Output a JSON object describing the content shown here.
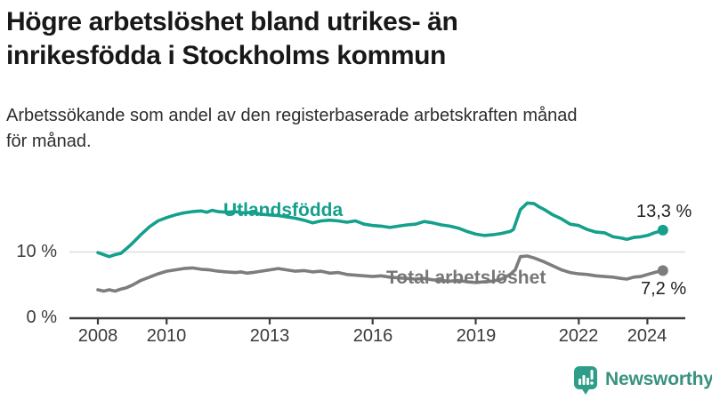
{
  "header": {
    "title_lines": [
      "Högre arbetslöshet bland utrikes- än",
      "inrikesfödda i Stockholms kommun"
    ],
    "subtitle_lines": [
      "Arbetssökande som andel av den registerbaserade arbetskraften månad",
      "för månad."
    ]
  },
  "branding": {
    "logo_text": "Newsworthy",
    "logo_icon": "speech-bubble-bar-chart-icon",
    "logo_icon_color": "#2f9e89",
    "logo_text_color": "#38927f"
  },
  "chart_data": {
    "type": "line",
    "title": "Högre arbetslöshet bland utrikes- än inrikesfödda i Stockholms kommun",
    "subtitle": "Arbetssökande som andel av den registerbaserade arbetskraften månad för månad.",
    "unit": "%",
    "grid": true,
    "legend_position": "inline-labels",
    "x_axis": {
      "ticks": [
        2008,
        2010,
        2013,
        2016,
        2019,
        2022,
        2024
      ],
      "range": [
        2008,
        2024.5
      ]
    },
    "y_axis": {
      "ticks": [
        {
          "value": 0,
          "label": "0 %"
        },
        {
          "value": 10,
          "label": "10 %"
        }
      ],
      "range": [
        0,
        20
      ],
      "gridlines": [
        10
      ]
    },
    "series": [
      {
        "name": "Utlandsfödda",
        "color": "#14a08c",
        "end_value": 13.3,
        "end_label": "13,3 %",
        "points": [
          [
            2008.0,
            9.9
          ],
          [
            2008.17,
            9.6
          ],
          [
            2008.33,
            9.3
          ],
          [
            2008.5,
            9.6
          ],
          [
            2008.67,
            9.8
          ],
          [
            2008.83,
            10.5
          ],
          [
            2009.0,
            11.3
          ],
          [
            2009.25,
            12.6
          ],
          [
            2009.5,
            13.8
          ],
          [
            2009.75,
            14.7
          ],
          [
            2010.0,
            15.2
          ],
          [
            2010.25,
            15.6
          ],
          [
            2010.5,
            15.9
          ],
          [
            2010.75,
            16.1
          ],
          [
            2011.0,
            16.2
          ],
          [
            2011.17,
            16.0
          ],
          [
            2011.33,
            16.3
          ],
          [
            2011.5,
            16.1
          ],
          [
            2011.75,
            16.0
          ],
          [
            2012.0,
            16.1
          ],
          [
            2012.25,
            15.9
          ],
          [
            2012.5,
            16.0
          ],
          [
            2012.75,
            15.7
          ],
          [
            2013.0,
            15.6
          ],
          [
            2013.25,
            15.5
          ],
          [
            2013.5,
            15.3
          ],
          [
            2013.75,
            15.1
          ],
          [
            2014.0,
            14.8
          ],
          [
            2014.25,
            14.4
          ],
          [
            2014.5,
            14.7
          ],
          [
            2014.75,
            14.8
          ],
          [
            2015.0,
            14.7
          ],
          [
            2015.25,
            14.5
          ],
          [
            2015.5,
            14.7
          ],
          [
            2015.75,
            14.2
          ],
          [
            2016.0,
            14.0
          ],
          [
            2016.25,
            13.9
          ],
          [
            2016.5,
            13.7
          ],
          [
            2016.75,
            13.9
          ],
          [
            2017.0,
            14.1
          ],
          [
            2017.25,
            14.2
          ],
          [
            2017.5,
            14.6
          ],
          [
            2017.75,
            14.4
          ],
          [
            2018.0,
            14.1
          ],
          [
            2018.25,
            13.9
          ],
          [
            2018.5,
            13.6
          ],
          [
            2018.75,
            13.1
          ],
          [
            2019.0,
            12.7
          ],
          [
            2019.25,
            12.5
          ],
          [
            2019.5,
            12.6
          ],
          [
            2019.75,
            12.8
          ],
          [
            2020.0,
            13.1
          ],
          [
            2020.1,
            13.4
          ],
          [
            2020.3,
            16.4
          ],
          [
            2020.5,
            17.4
          ],
          [
            2020.7,
            17.3
          ],
          [
            2020.85,
            16.8
          ],
          [
            2021.0,
            16.4
          ],
          [
            2021.25,
            15.6
          ],
          [
            2021.5,
            15.0
          ],
          [
            2021.75,
            14.2
          ],
          [
            2022.0,
            14.0
          ],
          [
            2022.25,
            13.4
          ],
          [
            2022.5,
            13.0
          ],
          [
            2022.75,
            12.9
          ],
          [
            2023.0,
            12.3
          ],
          [
            2023.25,
            12.1
          ],
          [
            2023.4,
            11.9
          ],
          [
            2023.6,
            12.2
          ],
          [
            2023.8,
            12.3
          ],
          [
            2024.0,
            12.5
          ],
          [
            2024.2,
            12.9
          ],
          [
            2024.35,
            13.1
          ],
          [
            2024.45,
            13.3
          ]
        ]
      },
      {
        "name": "Total arbetslöshet",
        "color": "#7d7d7d",
        "end_value": 7.2,
        "end_label": "7,2 %",
        "points": [
          [
            2008.0,
            4.3
          ],
          [
            2008.17,
            4.1
          ],
          [
            2008.33,
            4.3
          ],
          [
            2008.5,
            4.1
          ],
          [
            2008.67,
            4.4
          ],
          [
            2008.83,
            4.6
          ],
          [
            2009.0,
            5.0
          ],
          [
            2009.25,
            5.7
          ],
          [
            2009.5,
            6.2
          ],
          [
            2009.75,
            6.7
          ],
          [
            2010.0,
            7.1
          ],
          [
            2010.25,
            7.3
          ],
          [
            2010.5,
            7.5
          ],
          [
            2010.75,
            7.6
          ],
          [
            2011.0,
            7.4
          ],
          [
            2011.25,
            7.3
          ],
          [
            2011.5,
            7.1
          ],
          [
            2011.75,
            7.0
          ],
          [
            2012.0,
            6.9
          ],
          [
            2012.17,
            7.0
          ],
          [
            2012.33,
            6.8
          ],
          [
            2012.5,
            6.9
          ],
          [
            2012.75,
            7.1
          ],
          [
            2013.0,
            7.3
          ],
          [
            2013.25,
            7.5
          ],
          [
            2013.5,
            7.3
          ],
          [
            2013.75,
            7.1
          ],
          [
            2014.0,
            7.2
          ],
          [
            2014.25,
            7.0
          ],
          [
            2014.5,
            7.1
          ],
          [
            2014.75,
            6.8
          ],
          [
            2015.0,
            6.9
          ],
          [
            2015.25,
            6.6
          ],
          [
            2015.5,
            6.5
          ],
          [
            2015.75,
            6.4
          ],
          [
            2016.0,
            6.3
          ],
          [
            2016.25,
            6.4
          ],
          [
            2016.5,
            6.2
          ],
          [
            2016.75,
            6.1
          ],
          [
            2017.0,
            6.0
          ],
          [
            2017.25,
            5.9
          ],
          [
            2017.5,
            6.0
          ],
          [
            2017.75,
            5.8
          ],
          [
            2018.0,
            5.7
          ],
          [
            2018.25,
            5.6
          ],
          [
            2018.5,
            5.7
          ],
          [
            2018.75,
            5.5
          ],
          [
            2019.0,
            5.4
          ],
          [
            2019.25,
            5.5
          ],
          [
            2019.5,
            5.6
          ],
          [
            2019.75,
            5.9
          ],
          [
            2020.0,
            6.6
          ],
          [
            2020.15,
            7.3
          ],
          [
            2020.3,
            9.3
          ],
          [
            2020.5,
            9.4
          ],
          [
            2020.7,
            9.1
          ],
          [
            2020.85,
            8.8
          ],
          [
            2021.0,
            8.5
          ],
          [
            2021.25,
            7.9
          ],
          [
            2021.5,
            7.3
          ],
          [
            2021.75,
            6.9
          ],
          [
            2022.0,
            6.7
          ],
          [
            2022.25,
            6.6
          ],
          [
            2022.5,
            6.4
          ],
          [
            2022.75,
            6.3
          ],
          [
            2023.0,
            6.2
          ],
          [
            2023.25,
            6.0
          ],
          [
            2023.4,
            5.9
          ],
          [
            2023.6,
            6.2
          ],
          [
            2023.8,
            6.3
          ],
          [
            2024.0,
            6.6
          ],
          [
            2024.2,
            6.9
          ],
          [
            2024.35,
            7.1
          ],
          [
            2024.45,
            7.2
          ]
        ]
      }
    ]
  }
}
